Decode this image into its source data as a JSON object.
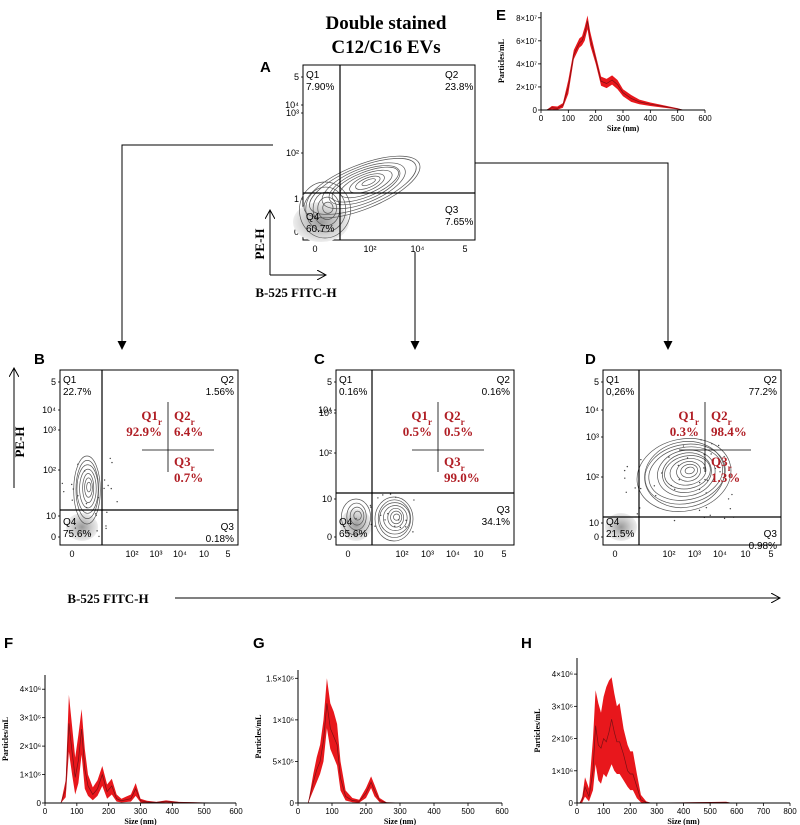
{
  "figure": {
    "title_line1": "Double stained",
    "title_line2": "C12/C16 EVs",
    "flow_x_label": "B-525 FITC-H",
    "flow_y_label": "PE-H",
    "colors": {
      "nta_fill": "#e8171c",
      "nta_line": "#7a1014",
      "region_text": "#b01d24",
      "contour": "#555555"
    }
  },
  "chart_data": [
    {
      "id": "A",
      "type": "contour",
      "panel": "A",
      "xticks": [
        "0",
        "10²",
        "10⁴",
        "5"
      ],
      "yticks": [
        "0",
        "1",
        "10²",
        "10³",
        "10⁴",
        "5"
      ],
      "xlabel": "B-525 FITC-H",
      "ylabel": "PE-H",
      "quadrants": {
        "Q1": "7.90%",
        "Q2": "23.8%",
        "Q3": "7.65%",
        "Q4": "60.7%"
      },
      "quadrant_names": {
        "Q1": "Q1",
        "Q2": "Q2",
        "Q3": "Q3",
        "Q4": "Q4"
      }
    },
    {
      "id": "B",
      "type": "contour",
      "panel": "B",
      "xticks": [
        "0",
        "10²",
        "10³",
        "10⁴",
        "10",
        "5"
      ],
      "yticks": [
        "0",
        "10",
        "10²",
        "10³",
        "10⁴",
        "5"
      ],
      "quadrants": {
        "Q1": "22.7%",
        "Q2": "1.56%",
        "Q3": "0.18%",
        "Q4": "75.6%"
      },
      "quadrant_names": {
        "Q1": "Q1",
        "Q2": "Q2",
        "Q3": "Q3",
        "Q4": "Q4"
      },
      "regions": {
        "Q1r": "92.9%",
        "Q2r": "6.4%",
        "Q3r": "0.7%"
      },
      "region_names": {
        "Q1r": "Q1",
        "Q2r": "Q2",
        "Q3r": "Q3",
        "sub": "r"
      }
    },
    {
      "id": "C",
      "type": "contour",
      "panel": "C",
      "xticks": [
        "0",
        "10²",
        "10³",
        "10⁴",
        "10",
        "5"
      ],
      "yticks": [
        "0",
        "10",
        "10²",
        "10³",
        "10⁴",
        "5"
      ],
      "quadrants": {
        "Q1": "0.16%",
        "Q2": "0.16%",
        "Q3": "34.1%",
        "Q4": "65.6%"
      },
      "quadrant_names": {
        "Q1": "Q1",
        "Q2": "Q2",
        "Q3": "Q3",
        "Q4": "Q4"
      },
      "regions": {
        "Q1r": "0.5%",
        "Q2r": "0.5%",
        "Q3r": "99.0%"
      },
      "region_names": {
        "Q1r": "Q1",
        "Q2r": "Q2",
        "Q3r": "Q3",
        "sub": "r"
      }
    },
    {
      "id": "D",
      "type": "contour",
      "panel": "D",
      "xticks": [
        "0",
        "10²",
        "10³",
        "10⁴",
        "10",
        "5"
      ],
      "yticks": [
        "0",
        "10",
        "10²",
        "10³",
        "10⁴",
        "5"
      ],
      "quadrants": {
        "Q1": "0,26%",
        "Q2": "77.2%",
        "Q3": "0.98%",
        "Q4": "21.5%"
      },
      "quadrant_names": {
        "Q1": "Q1",
        "Q2": "Q2",
        "Q3": "Q3",
        "Q4": "Q4"
      },
      "regions": {
        "Q1r": "0.3%",
        "Q2r": "98.4%",
        "Q3r": "1.3%"
      },
      "region_names": {
        "Q1r": "Q1",
        "Q2r": "Q2",
        "Q3r": "Q3",
        "sub": "r"
      }
    },
    {
      "id": "E",
      "type": "area",
      "panel": "E",
      "xlabel": "Size (nm)",
      "ylabel": "Particles/mL",
      "xlim": [
        0,
        600
      ],
      "ylim": [
        0,
        85000000
      ],
      "xticks": [
        0,
        100,
        200,
        300,
        400,
        500,
        600
      ],
      "yticks": [
        0,
        20000000,
        40000000,
        60000000,
        80000000
      ],
      "ytick_labels": [
        "0",
        "2×10⁷",
        "4×10⁷",
        "6×10⁷",
        "8×10⁷"
      ],
      "x": [
        20,
        40,
        60,
        80,
        100,
        120,
        140,
        150,
        160,
        170,
        180,
        200,
        220,
        240,
        260,
        280,
        300,
        330,
        360,
        400,
        450,
        500,
        520
      ],
      "mean": [
        0,
        2000000,
        1500000,
        4000000,
        20000000,
        48000000,
        58000000,
        60000000,
        66000000,
        77000000,
        62000000,
        44000000,
        25000000,
        23000000,
        26000000,
        22000000,
        15000000,
        10000000,
        7000000,
        5000000,
        3000000,
        1000000,
        0
      ],
      "upper": [
        0,
        3500000,
        3000000,
        6000000,
        26000000,
        52000000,
        62000000,
        64000000,
        72000000,
        82000000,
        68000000,
        48000000,
        29000000,
        27000000,
        30000000,
        26000000,
        18000000,
        13000000,
        9000000,
        6500000,
        4000000,
        1500000,
        0
      ],
      "lower": [
        0,
        500000,
        200000,
        2000000,
        14000000,
        44000000,
        54000000,
        56000000,
        60000000,
        70000000,
        56000000,
        40000000,
        21000000,
        19000000,
        22000000,
        18000000,
        12000000,
        7000000,
        5000000,
        3500000,
        2000000,
        500000,
        0
      ]
    },
    {
      "id": "F",
      "type": "area",
      "panel": "F",
      "xlabel": "Size (nm)",
      "ylabel": "Particles/mL",
      "xlim": [
        0,
        600
      ],
      "ylim": [
        0,
        4500000
      ],
      "xticks": [
        0,
        100,
        200,
        300,
        400,
        500,
        600
      ],
      "yticks": [
        0,
        1000000,
        2000000,
        3000000,
        4000000
      ],
      "ytick_labels": [
        "0",
        "1×10⁶",
        "2×10⁶",
        "3×10⁶",
        "4×10⁶"
      ],
      "x": [
        50,
        65,
        75,
        85,
        95,
        105,
        115,
        125,
        135,
        150,
        165,
        180,
        195,
        210,
        225,
        240,
        270,
        285,
        300,
        320,
        350,
        380,
        420,
        480,
        560
      ],
      "mean": [
        0,
        500000,
        2800000,
        1800000,
        900000,
        1500000,
        2600000,
        1200000,
        600000,
        300000,
        500000,
        1000000,
        400000,
        600000,
        150000,
        80000,
        150000,
        500000,
        80000,
        40000,
        20000,
        60000,
        20000,
        10000,
        0
      ],
      "upper": [
        0,
        800000,
        3800000,
        2700000,
        1600000,
        2400000,
        3300000,
        1900000,
        1000000,
        550000,
        800000,
        1300000,
        650000,
        850000,
        300000,
        150000,
        300000,
        700000,
        150000,
        80000,
        40000,
        90000,
        40000,
        20000,
        0
      ],
      "lower": [
        0,
        200000,
        1800000,
        1000000,
        300000,
        700000,
        1700000,
        500000,
        250000,
        100000,
        250000,
        600000,
        150000,
        300000,
        50000,
        20000,
        50000,
        250000,
        20000,
        10000,
        5000,
        20000,
        5000,
        0,
        0
      ]
    },
    {
      "id": "G",
      "type": "area",
      "panel": "G",
      "xlabel": "Size (nm)",
      "ylabel": "Particles/mL",
      "xlim": [
        0,
        600
      ],
      "ylim": [
        0,
        1600000
      ],
      "xticks": [
        0,
        100,
        200,
        300,
        400,
        500,
        600
      ],
      "yticks": [
        0,
        500000,
        1000000,
        1500000
      ],
      "ytick_labels": [
        "0",
        "5×10⁵",
        "1×10⁶",
        "1.5×10⁶"
      ],
      "x": [
        30,
        45,
        55,
        65,
        75,
        85,
        95,
        105,
        115,
        125,
        140,
        160,
        180,
        200,
        215,
        225,
        240,
        260,
        300
      ],
      "mean": [
        0,
        250000,
        400000,
        500000,
        750000,
        1200000,
        900000,
        800000,
        700000,
        300000,
        80000,
        30000,
        20000,
        120000,
        250000,
        150000,
        30000,
        5000,
        0
      ],
      "upper": [
        0,
        350000,
        550000,
        700000,
        1000000,
        1500000,
        1200000,
        1100000,
        950000,
        500000,
        150000,
        60000,
        40000,
        180000,
        320000,
        220000,
        60000,
        10000,
        0
      ],
      "lower": [
        0,
        150000,
        250000,
        350000,
        500000,
        900000,
        650000,
        550000,
        450000,
        150000,
        30000,
        10000,
        5000,
        60000,
        180000,
        80000,
        10000,
        0,
        0
      ]
    },
    {
      "id": "H",
      "type": "area",
      "panel": "H",
      "xlabel": "Size (nm)",
      "ylabel": "Particles/mL",
      "xlim": [
        0,
        800
      ],
      "ylim": [
        0,
        4500000
      ],
      "xticks": [
        0,
        100,
        200,
        300,
        400,
        500,
        600,
        700,
        800
      ],
      "yticks": [
        0,
        1000000,
        2000000,
        3000000,
        4000000
      ],
      "ytick_labels": [
        "0",
        "1×10⁶",
        "2×10⁶",
        "3×10⁶",
        "4×10⁶"
      ],
      "x": [
        10,
        20,
        30,
        45,
        60,
        70,
        80,
        90,
        100,
        110,
        120,
        130,
        140,
        150,
        160,
        175,
        190,
        200,
        210,
        225,
        240,
        260,
        280,
        560,
        580
      ],
      "mean": [
        0,
        100000,
        500000,
        200000,
        1000000,
        2400000,
        1800000,
        1700000,
        2000000,
        1900000,
        2200000,
        2600000,
        2200000,
        1900000,
        1900000,
        1500000,
        1000000,
        900000,
        900000,
        500000,
        100000,
        20000,
        0,
        20000,
        0
      ],
      "upper": [
        0,
        200000,
        800000,
        450000,
        2000000,
        3500000,
        3100000,
        2800000,
        3300000,
        3600000,
        3800000,
        3900000,
        3400000,
        3000000,
        3100000,
        2300000,
        1800000,
        1600000,
        1600000,
        900000,
        250000,
        50000,
        0,
        40000,
        0
      ],
      "lower": [
        0,
        20000,
        200000,
        50000,
        400000,
        1200000,
        700000,
        600000,
        900000,
        800000,
        1000000,
        1200000,
        1000000,
        900000,
        900000,
        700000,
        500000,
        400000,
        400000,
        150000,
        20000,
        0,
        0,
        0,
        0
      ]
    }
  ]
}
